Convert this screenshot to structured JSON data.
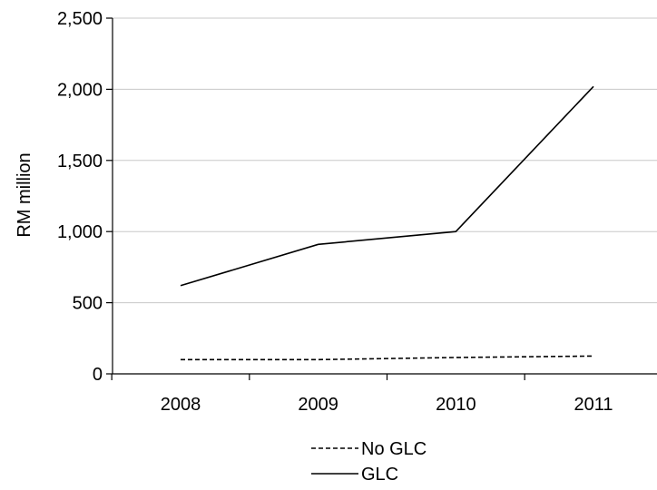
{
  "chart_data": {
    "type": "line",
    "title": "",
    "xlabel": "",
    "ylabel": "RM million",
    "categories": [
      "2008",
      "2009",
      "2010",
      "2011"
    ],
    "ylim": [
      0,
      2500
    ],
    "yticks": [
      0,
      500,
      1000,
      1500,
      2000,
      2500
    ],
    "ytick_labels": [
      "0",
      "500",
      "1,000",
      "1,500",
      "2,000",
      "2,500"
    ],
    "grid": "horizontal",
    "legend_position": "bottom",
    "series": [
      {
        "name": "No GLC",
        "values": [
          100,
          100,
          115,
          125
        ],
        "style": "dashed",
        "color": "#000000"
      },
      {
        "name": "GLC",
        "values": [
          620,
          910,
          1000,
          2020
        ],
        "style": "solid",
        "color": "#000000"
      }
    ]
  },
  "colors": {
    "gridline": "#c8c8c8",
    "axis": "#000000",
    "background": "#ffffff"
  }
}
